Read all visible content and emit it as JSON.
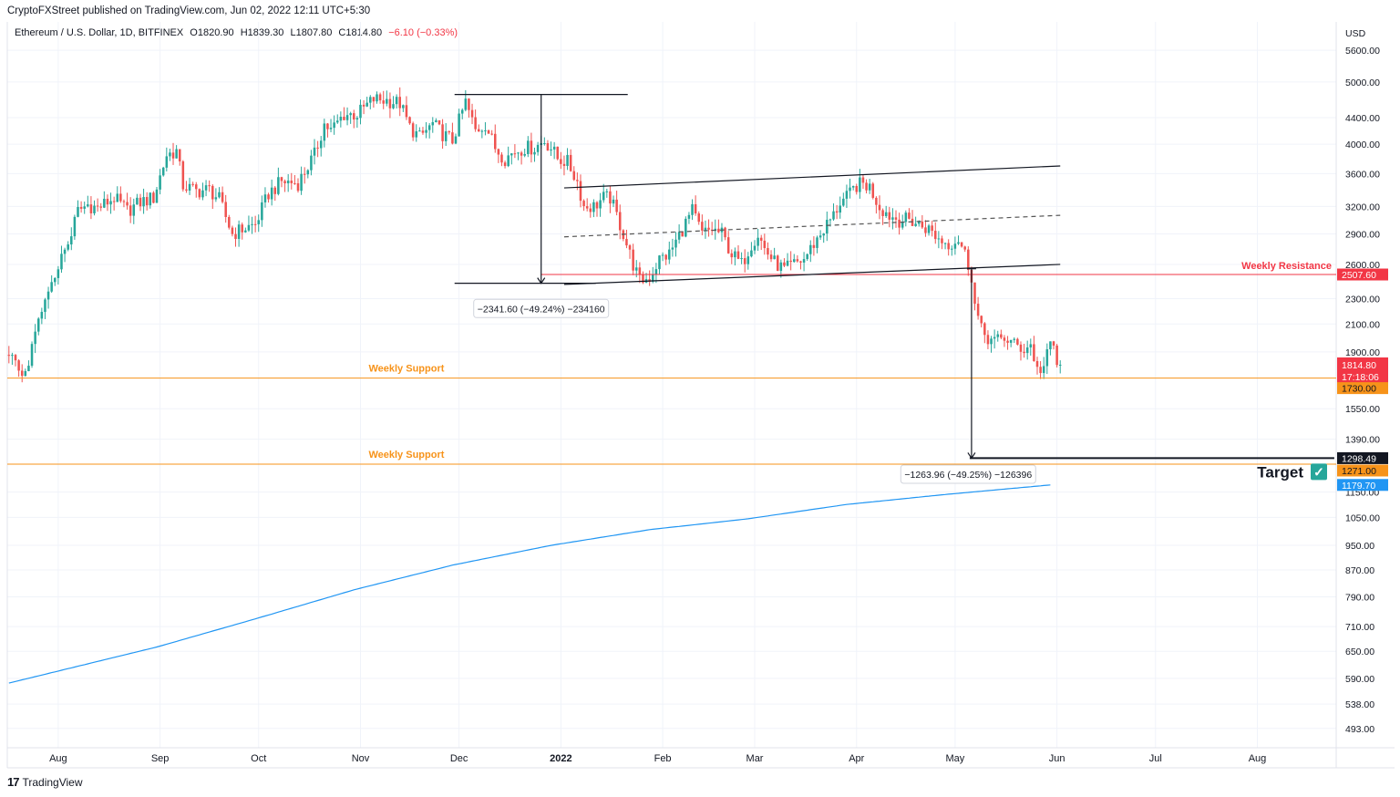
{
  "header": {
    "published": "CryptoFXStreet published on TradingView.com, Jun 02, 2022 12:11 UTC+5:30"
  },
  "legend": {
    "symbol": "Ethereum / U.S. Dollar, 1D, BITFINEX",
    "open": "O1820.90",
    "high": "H1839.30",
    "low": "L1807.80",
    "close": "C1814.80",
    "change": "−6.10 (−0.33%)"
  },
  "footer": {
    "brand": "TradingView",
    "logo": "17"
  },
  "colors": {
    "up": "#26a69a",
    "down": "#ef5350",
    "support": "#f7931a",
    "resistance": "#f23645",
    "ma": "#2196f3",
    "grid": "#f0f3fa"
  },
  "chart_data": {
    "type": "candlestick",
    "title": "Ethereum / U.S. Dollar, 1D, BITFINEX",
    "scale": "log",
    "ylim": [
      460,
      6200
    ],
    "currency": "USD",
    "y_ticks": [
      "5600.00",
      "5000.00",
      "4400.00",
      "4000.00",
      "3600.00",
      "3200.00",
      "2900.00",
      "2600.00",
      "2300.00",
      "2100.00",
      "1900.00",
      "1550.00",
      "1390.00",
      "1150.00",
      "1050.00",
      "950.00",
      "870.00",
      "790.00",
      "710.00",
      "650.00",
      "590.00",
      "538.00",
      "493.00"
    ],
    "y_tick_values": [
      5600,
      5000,
      4400,
      4000,
      3600,
      3200,
      2900,
      2600,
      2300,
      2100,
      1900,
      1550,
      1390,
      1150,
      1050,
      950,
      870,
      790,
      710,
      650,
      590,
      538,
      493
    ],
    "x_ticks": [
      {
        "label": "Aug",
        "day": 0,
        "bold": false
      },
      {
        "label": "Sep",
        "day": 31,
        "bold": false
      },
      {
        "label": "Oct",
        "day": 61,
        "bold": false
      },
      {
        "label": "Nov",
        "day": 92,
        "bold": false
      },
      {
        "label": "Dec",
        "day": 122,
        "bold": false
      },
      {
        "label": "2022",
        "day": 153,
        "bold": true
      },
      {
        "label": "Feb",
        "day": 184,
        "bold": false
      },
      {
        "label": "Mar",
        "day": 212,
        "bold": false
      },
      {
        "label": "Apr",
        "day": 243,
        "bold": false
      },
      {
        "label": "May",
        "day": 273,
        "bold": false
      },
      {
        "label": "Jun",
        "day": 304,
        "bold": false
      },
      {
        "label": "Jul",
        "day": 334,
        "bold": false
      },
      {
        "label": "Aug",
        "day": 365,
        "bold": false
      }
    ],
    "x_range_days": [
      -15.5,
      389
    ],
    "close_path": [
      [
        -15,
        1880
      ],
      [
        -12,
        1800
      ],
      [
        -10,
        1750
      ],
      [
        -6,
        2100
      ],
      [
        0,
        2600
      ],
      [
        3,
        2800
      ],
      [
        6,
        3150
      ],
      [
        9,
        3220
      ],
      [
        12,
        3180
      ],
      [
        17,
        3300
      ],
      [
        21,
        3150
      ],
      [
        25,
        3250
      ],
      [
        29,
        3300
      ],
      [
        33,
        3850
      ],
      [
        36,
        3900
      ],
      [
        38,
        3450
      ],
      [
        42,
        3380
      ],
      [
        46,
        3400
      ],
      [
        49,
        3280
      ],
      [
        53,
        2900
      ],
      [
        56,
        2950
      ],
      [
        60,
        3000
      ],
      [
        64,
        3350
      ],
      [
        68,
        3500
      ],
      [
        73,
        3480
      ],
      [
        78,
        3850
      ],
      [
        81,
        4300
      ],
      [
        83,
        4200
      ],
      [
        87,
        4450
      ],
      [
        91,
        4450
      ],
      [
        94,
        4600
      ],
      [
        96,
        4700
      ],
      [
        100,
        4680
      ],
      [
        104,
        4630
      ],
      [
        107,
        4250
      ],
      [
        110,
        4100
      ],
      [
        114,
        4300
      ],
      [
        117,
        4150
      ],
      [
        120,
        4050
      ],
      [
        123,
        4500
      ],
      [
        124,
        4650
      ],
      [
        127,
        4200
      ],
      [
        130,
        4300
      ],
      [
        133,
        3950
      ],
      [
        136,
        3800
      ],
      [
        139,
        3900
      ],
      [
        142,
        3950
      ],
      [
        145,
        3950
      ],
      [
        148,
        4050
      ],
      [
        150,
        3950
      ],
      [
        152,
        3800
      ],
      [
        155,
        3750
      ],
      [
        158,
        3500
      ],
      [
        160,
        3200
      ],
      [
        163,
        3200
      ],
      [
        166,
        3300
      ],
      [
        168,
        3300
      ],
      [
        171,
        3000
      ],
      [
        172,
        2900
      ],
      [
        175,
        2600
      ],
      [
        177,
        2450
      ],
      [
        180,
        2480
      ],
      [
        183,
        2650
      ],
      [
        186,
        2700
      ],
      [
        190,
        2950
      ],
      [
        193,
        3150
      ],
      [
        196,
        2900
      ],
      [
        199,
        2950
      ],
      [
        202,
        2900
      ],
      [
        205,
        2700
      ],
      [
        208,
        2600
      ],
      [
        211,
        2800
      ],
      [
        213,
        2900
      ],
      [
        215,
        2750
      ],
      [
        218,
        2620
      ],
      [
        221,
        2550
      ],
      [
        224,
        2600
      ],
      [
        227,
        2650
      ],
      [
        230,
        2800
      ],
      [
        233,
        2950
      ],
      [
        236,
        3100
      ],
      [
        238,
        3250
      ],
      [
        240,
        3300
      ],
      [
        243,
        3450
      ],
      [
        245,
        3470
      ],
      [
        247,
        3430
      ],
      [
        250,
        3200
      ],
      [
        253,
        3100
      ],
      [
        256,
        3050
      ],
      [
        259,
        3050
      ],
      [
        262,
        3000
      ],
      [
        265,
        2950
      ],
      [
        268,
        2850
      ],
      [
        271,
        2800
      ],
      [
        274,
        2850
      ],
      [
        276,
        2700
      ],
      [
        278,
        2500
      ],
      [
        279,
        2250
      ],
      [
        281,
        2050
      ],
      [
        283,
        2000
      ],
      [
        285,
        1970
      ],
      [
        288,
        2000
      ],
      [
        291,
        1950
      ],
      [
        294,
        1920
      ],
      [
        296,
        1950
      ],
      [
        298,
        1780
      ],
      [
        300,
        1800
      ],
      [
        302,
        1950
      ],
      [
        303,
        1940
      ],
      [
        304,
        1820
      ],
      [
        305,
        1814.8
      ]
    ],
    "moving_average_200d": {
      "color": "#2196f3",
      "points": [
        [
          -15,
          580
        ],
        [
          30,
          660
        ],
        [
          60,
          730
        ],
        [
          90,
          810
        ],
        [
          120,
          885
        ],
        [
          150,
          950
        ],
        [
          180,
          1005
        ],
        [
          210,
          1045
        ],
        [
          240,
          1100
        ],
        [
          270,
          1140
        ],
        [
          302,
          1179.7
        ]
      ]
    },
    "channel": {
      "upper": {
        "from": [
          154,
          3420
        ],
        "to": [
          305,
          3700
        ]
      },
      "lower": {
        "from": [
          154,
          2420
        ],
        "to": [
          305,
          2600
        ]
      },
      "mid": {
        "from": [
          154,
          2870
        ],
        "to": [
          305,
          3100
        ],
        "dashed": true
      }
    },
    "measure_1": {
      "x_day": 147,
      "from_price": 4780,
      "to_price": 2430,
      "label": "−2341.60 (−49.24%) −234160"
    },
    "measure_2": {
      "x_day": 278,
      "from_price": 2560,
      "to_price": 1298.49,
      "label": "−1263.96 (−49.25%) −126396"
    },
    "levels": [
      {
        "name": "Weekly Resistance",
        "price": 2507.6,
        "label": "2507.60",
        "color": "#f23645"
      },
      {
        "name": "Weekly Support",
        "price": 1730.0,
        "label": "1730.00",
        "color": "#f7931a"
      },
      {
        "name": "Weekly Support",
        "price": 1271.0,
        "label": "1271.00",
        "color": "#f7931a"
      }
    ],
    "target": {
      "label": "Target",
      "price": 1298.49,
      "price_label": "1298.49",
      "check": "✓"
    },
    "last_price": {
      "price": 1814.8,
      "label": "1814.80",
      "countdown": "17:18:06",
      "color": "#f23645"
    },
    "ma_price": {
      "price": 1179.7,
      "label": "1179.70"
    }
  }
}
